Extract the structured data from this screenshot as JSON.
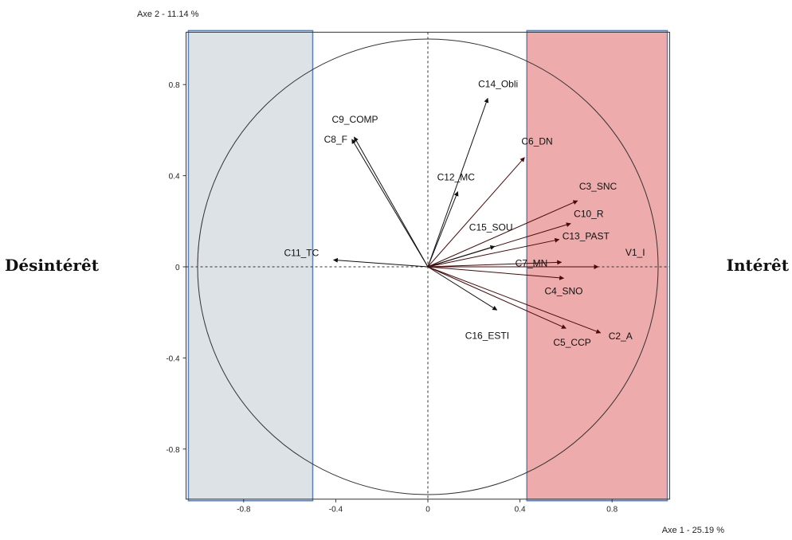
{
  "chart_data": {
    "type": "scatter",
    "subtype": "correlation-circle",
    "title": "",
    "xlabel": "Axe 1  -  25.19 %",
    "ylabel": "Axe 2  -  11.14 %",
    "xlim": [
      -1.05,
      1.05
    ],
    "ylim": [
      -1.02,
      1.03
    ],
    "x_ticks": [
      {
        "value": -0.8,
        "label": "-0.8"
      },
      {
        "value": -0.4,
        "label": "-0.4"
      },
      {
        "value": 0,
        "label": "0"
      },
      {
        "value": 0.4,
        "label": "0.4"
      },
      {
        "value": 0.8,
        "label": "0.8"
      }
    ],
    "y_ticks": [
      {
        "value": 0.8,
        "label": "0.8"
      },
      {
        "value": 0.4,
        "label": "0.4"
      },
      {
        "value": 0,
        "label": "0"
      },
      {
        "value": -0.4,
        "label": "-0.4"
      },
      {
        "value": -0.8,
        "label": "-0.8"
      }
    ],
    "unit_circle": true,
    "reference_lines": "dashed-at-zero",
    "regions": [
      {
        "label": "Désintérêt",
        "x_range": [
          -1.04,
          -0.5
        ],
        "color": "#dde2e6",
        "border": "#5a80b8"
      },
      {
        "label": "Intérêt",
        "x_range": [
          0.43,
          1.04
        ],
        "color": "#eeabab",
        "border": "#5a80b8"
      }
    ],
    "series": [
      {
        "points": [
          {
            "label": "C14_Obli",
            "x": 0.26,
            "y": 0.74
          },
          {
            "label": "C9_COMP",
            "x": -0.32,
            "y": 0.57
          },
          {
            "label": "C8_F",
            "x": -0.33,
            "y": 0.56
          },
          {
            "label": "C6_DN",
            "x": 0.42,
            "y": 0.48
          },
          {
            "label": "C12_MC",
            "x": 0.13,
            "y": 0.33
          },
          {
            "label": "C3_SNC",
            "x": 0.65,
            "y": 0.29
          },
          {
            "label": "C10_R",
            "x": 0.62,
            "y": 0.19
          },
          {
            "label": "C15_SOU",
            "x": 0.29,
            "y": 0.09
          },
          {
            "label": "C13_PAST",
            "x": 0.57,
            "y": 0.12
          },
          {
            "label": "C11_TC",
            "x": -0.41,
            "y": 0.03
          },
          {
            "label": "C7_MN",
            "x": 0.58,
            "y": 0.02
          },
          {
            "label": "V1_I",
            "x": 0.74,
            "y": 0.0
          },
          {
            "label": "C4_SNO",
            "x": 0.59,
            "y": -0.05
          },
          {
            "label": "C16_ESTI",
            "x": 0.3,
            "y": -0.19
          },
          {
            "label": "C5_CCP",
            "x": 0.6,
            "y": -0.27
          },
          {
            "label": "C2_A",
            "x": 0.75,
            "y": -0.29
          }
        ]
      }
    ],
    "colors": {
      "arrow_left": "#111111",
      "arrow_right": "#4a0a0a",
      "circle": "#333333",
      "frame": "#333333"
    }
  }
}
